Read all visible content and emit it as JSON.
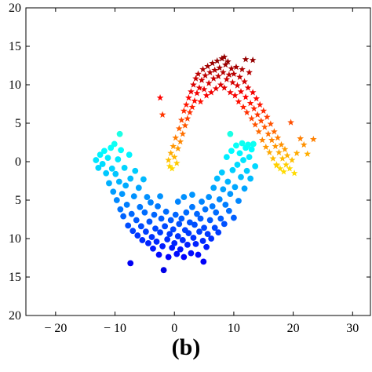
{
  "caption": "(b)",
  "chart_data": {
    "type": "scatter",
    "title": "",
    "xlabel": "",
    "ylabel": "",
    "xlim": [
      -25,
      33
    ],
    "ylim": [
      -20,
      20
    ],
    "x_ticks": [
      -20,
      -10,
      0,
      10,
      20,
      30
    ],
    "x_tick_labels": [
      "− 20",
      "− 10",
      "0",
      "10",
      "20",
      "30"
    ],
    "y_ticks": [
      20,
      15,
      10,
      5,
      0,
      -5,
      -10,
      -15,
      -20
    ],
    "y_tick_labels": [
      "20",
      "15",
      "10",
      "5",
      "0",
      "5",
      "10",
      "15",
      "20"
    ],
    "grid": false,
    "legend": "none",
    "colormap": "jet",
    "series": [
      {
        "marker": "circle",
        "description_of_shape": "lower U-shaped cluster",
        "points": [
          [
            -13.2,
            0.2
          ],
          [
            -12.8,
            -0.8
          ],
          [
            -12.5,
            0.9
          ],
          [
            -12.1,
            -0.3
          ],
          [
            -11.8,
            1.4
          ],
          [
            -11.5,
            -1.5
          ],
          [
            -11.2,
            0.5
          ],
          [
            -11.0,
            -2.8
          ],
          [
            -10.7,
            1.8
          ],
          [
            -10.5,
            -0.9
          ],
          [
            -10.3,
            -3.9
          ],
          [
            -10.1,
            2.3
          ],
          [
            -9.9,
            -1.6
          ],
          [
            -9.7,
            -5.0
          ],
          [
            -9.5,
            0.3
          ],
          [
            -9.3,
            -2.6
          ],
          [
            -9.1,
            -6.2
          ],
          [
            -9.0,
            1.5
          ],
          [
            -8.8,
            -4.2
          ],
          [
            -8.6,
            -7.1
          ],
          [
            -8.4,
            -0.8
          ],
          [
            -8.2,
            -3.1
          ],
          [
            -8.0,
            -5.6
          ],
          [
            -7.8,
            -8.3
          ],
          [
            -7.6,
            0.9
          ],
          [
            -7.4,
            -2.2
          ],
          [
            -7.2,
            -6.8
          ],
          [
            -7.0,
            -9.0
          ],
          [
            -6.8,
            -4.5
          ],
          [
            -6.6,
            -1.2
          ],
          [
            -6.4,
            -7.6
          ],
          [
            -6.2,
            -9.6
          ],
          [
            -6.0,
            -3.4
          ],
          [
            -5.8,
            -5.9
          ],
          [
            -5.6,
            -8.4
          ],
          [
            -5.4,
            -10.2
          ],
          [
            -5.2,
            -2.3
          ],
          [
            -5.0,
            -6.6
          ],
          [
            -4.8,
            -9.1
          ],
          [
            -4.6,
            -4.6
          ],
          [
            -4.4,
            -10.6
          ],
          [
            -4.2,
            -7.8
          ],
          [
            -4.0,
            -5.3
          ],
          [
            -3.8,
            -9.8
          ],
          [
            -3.6,
            -11.3
          ],
          [
            -3.4,
            -6.9
          ],
          [
            -3.2,
            -8.7
          ],
          [
            -3.0,
            -10.4
          ],
          [
            -2.8,
            -5.8
          ],
          [
            -2.6,
            -12.1
          ],
          [
            -2.4,
            -9.2
          ],
          [
            -2.2,
            -7.4
          ],
          [
            -2.0,
            -11.0
          ],
          [
            -1.8,
            -14.1
          ],
          [
            -1.6,
            -8.4
          ],
          [
            -1.4,
            -6.5
          ],
          [
            -1.2,
            -10.1
          ],
          [
            -1.0,
            -12.4
          ],
          [
            -0.8,
            -9.4
          ],
          [
            -0.6,
            -7.6
          ],
          [
            -0.4,
            -11.2
          ],
          [
            -0.2,
            -8.8
          ],
          [
            0.0,
            -10.6
          ],
          [
            0.2,
            -6.9
          ],
          [
            0.4,
            -12.0
          ],
          [
            0.6,
            -9.7
          ],
          [
            0.8,
            -8.1
          ],
          [
            1.0,
            -11.4
          ],
          [
            1.2,
            -7.4
          ],
          [
            1.4,
            -10.2
          ],
          [
            1.6,
            -12.4
          ],
          [
            1.8,
            -8.9
          ],
          [
            2.0,
            -6.6
          ],
          [
            2.2,
            -10.8
          ],
          [
            2.4,
            -9.3
          ],
          [
            2.6,
            -7.9
          ],
          [
            2.8,
            -11.9
          ],
          [
            3.0,
            -5.9
          ],
          [
            3.2,
            -9.9
          ],
          [
            3.4,
            -8.2
          ],
          [
            3.6,
            -10.7
          ],
          [
            3.8,
            -6.8
          ],
          [
            4.0,
            -12.1
          ],
          [
            4.2,
            -9.1
          ],
          [
            4.4,
            -7.4
          ],
          [
            4.6,
            -5.2
          ],
          [
            4.8,
            -10.3
          ],
          [
            5.0,
            -8.6
          ],
          [
            5.2,
            -6.2
          ],
          [
            5.4,
            -11.1
          ],
          [
            5.6,
            -9.4
          ],
          [
            5.8,
            -4.6
          ],
          [
            6.0,
            -7.6
          ],
          [
            6.2,
            -10.0
          ],
          [
            6.4,
            -5.8
          ],
          [
            6.6,
            -3.4
          ],
          [
            6.8,
            -8.6
          ],
          [
            7.0,
            -6.6
          ],
          [
            7.2,
            -2.2
          ],
          [
            7.4,
            -9.2
          ],
          [
            7.6,
            -4.9
          ],
          [
            7.8,
            -7.4
          ],
          [
            8.0,
            -1.4
          ],
          [
            8.2,
            -3.6
          ],
          [
            8.4,
            -8.1
          ],
          [
            8.6,
            -5.6
          ],
          [
            8.8,
            0.6
          ],
          [
            9.0,
            -2.6
          ],
          [
            9.2,
            -6.4
          ],
          [
            9.4,
            -4.2
          ],
          [
            9.6,
            1.4
          ],
          [
            9.8,
            -1.1
          ],
          [
            10.0,
            -7.3
          ],
          [
            10.2,
            -3.3
          ],
          [
            10.4,
            2.1
          ],
          [
            10.6,
            -0.4
          ],
          [
            10.8,
            -5.1
          ],
          [
            11.0,
            1.1
          ],
          [
            11.2,
            -2.0
          ],
          [
            11.4,
            2.4
          ],
          [
            11.6,
            0.2
          ],
          [
            11.8,
            -3.5
          ],
          [
            12.0,
            1.8
          ],
          [
            12.2,
            -1.2
          ],
          [
            12.4,
            2.2
          ],
          [
            12.6,
            0.6
          ],
          [
            12.8,
            -2.2
          ],
          [
            13.0,
            1.6
          ],
          [
            13.3,
            2.3
          ],
          [
            13.6,
            -0.6
          ],
          [
            9.4,
            3.6
          ],
          [
            -9.2,
            3.6
          ],
          [
            -7.4,
            -13.2
          ],
          [
            4.9,
            -13.0
          ],
          [
            -2.4,
            -4.5
          ],
          [
            0.6,
            -5.2
          ],
          [
            1.6,
            -4.6
          ],
          [
            3.0,
            -4.3
          ]
        ]
      },
      {
        "marker": "star",
        "description_of_shape": "upper inverted-U cluster",
        "points": [
          [
            -1.0,
            0.2
          ],
          [
            -0.8,
            -0.6
          ],
          [
            -0.6,
            1.1
          ],
          [
            -0.4,
            -0.9
          ],
          [
            -0.2,
            2.0
          ],
          [
            0.0,
            0.6
          ],
          [
            0.2,
            3.1
          ],
          [
            0.4,
            -0.2
          ],
          [
            0.6,
            1.7
          ],
          [
            0.8,
            4.3
          ],
          [
            1.0,
            2.6
          ],
          [
            1.2,
            5.4
          ],
          [
            1.4,
            3.6
          ],
          [
            1.6,
            6.6
          ],
          [
            1.8,
            4.7
          ],
          [
            2.0,
            7.4
          ],
          [
            2.2,
            5.6
          ],
          [
            2.4,
            8.3
          ],
          [
            2.6,
            6.4
          ],
          [
            2.8,
            9.1
          ],
          [
            3.0,
            7.1
          ],
          [
            3.2,
            10.0
          ],
          [
            3.4,
            7.9
          ],
          [
            3.6,
            10.8
          ],
          [
            3.8,
            8.9
          ],
          [
            4.0,
            11.4
          ],
          [
            4.2,
            9.6
          ],
          [
            4.4,
            7.8
          ],
          [
            4.6,
            10.6
          ],
          [
            4.8,
            12.0
          ],
          [
            5.0,
            9.4
          ],
          [
            5.2,
            11.2
          ],
          [
            5.4,
            8.6
          ],
          [
            5.6,
            12.4
          ],
          [
            5.8,
            10.2
          ],
          [
            6.0,
            11.6
          ],
          [
            6.2,
            9.0
          ],
          [
            6.4,
            12.8
          ],
          [
            6.6,
            10.8
          ],
          [
            6.8,
            11.9
          ],
          [
            7.0,
            9.5
          ],
          [
            7.2,
            13.1
          ],
          [
            7.4,
            11.1
          ],
          [
            7.6,
            12.2
          ],
          [
            7.8,
            10.0
          ],
          [
            8.0,
            13.4
          ],
          [
            8.2,
            11.6
          ],
          [
            8.4,
            9.6
          ],
          [
            8.6,
            12.6
          ],
          [
            8.8,
            10.7
          ],
          [
            9.0,
            13.0
          ],
          [
            9.2,
            11.3
          ],
          [
            9.4,
            9.0
          ],
          [
            9.6,
            12.1
          ],
          [
            9.8,
            10.3
          ],
          [
            10.0,
            11.4
          ],
          [
            10.2,
            8.6
          ],
          [
            10.4,
            12.3
          ],
          [
            10.6,
            9.9
          ],
          [
            10.8,
            7.8
          ],
          [
            11.0,
            11.0
          ],
          [
            11.2,
            9.1
          ],
          [
            11.4,
            12.0
          ],
          [
            11.6,
            7.1
          ],
          [
            11.8,
            10.4
          ],
          [
            12.0,
            8.4
          ],
          [
            12.2,
            6.4
          ],
          [
            12.4,
            9.6
          ],
          [
            12.6,
            11.6
          ],
          [
            12.8,
            7.6
          ],
          [
            13.0,
            5.6
          ],
          [
            13.2,
            9.0
          ],
          [
            13.4,
            6.9
          ],
          [
            13.6,
            4.8
          ],
          [
            13.8,
            8.2
          ],
          [
            14.0,
            6.1
          ],
          [
            14.2,
            3.9
          ],
          [
            14.4,
            7.4
          ],
          [
            14.6,
            5.3
          ],
          [
            14.8,
            2.8
          ],
          [
            15.0,
            6.6
          ],
          [
            15.2,
            4.5
          ],
          [
            15.4,
            1.9
          ],
          [
            15.6,
            5.8
          ],
          [
            15.8,
            3.6
          ],
          [
            16.0,
            1.2
          ],
          [
            16.2,
            4.9
          ],
          [
            16.4,
            2.8
          ],
          [
            16.6,
            0.4
          ],
          [
            16.8,
            3.9
          ],
          [
            17.0,
            2.0
          ],
          [
            17.2,
            -0.4
          ],
          [
            17.4,
            3.1
          ],
          [
            17.6,
            1.2
          ],
          [
            17.8,
            -0.9
          ],
          [
            18.0,
            2.2
          ],
          [
            18.2,
            0.4
          ],
          [
            18.4,
            -1.3
          ],
          [
            18.6,
            1.6
          ],
          [
            18.8,
            -0.4
          ],
          [
            19.0,
            0.8
          ],
          [
            19.4,
            -0.9
          ],
          [
            19.8,
            0.2
          ],
          [
            20.2,
            -1.5
          ],
          [
            20.6,
            1.1
          ],
          [
            21.2,
            3.0
          ],
          [
            21.8,
            2.2
          ],
          [
            22.4,
            1.0
          ],
          [
            23.4,
            2.9
          ],
          [
            13.2,
            13.2
          ],
          [
            -2.4,
            8.3
          ],
          [
            -2.0,
            6.1
          ],
          [
            8.4,
            13.6
          ],
          [
            12.0,
            13.3
          ],
          [
            17.2,
            -0.5
          ],
          [
            19.6,
            5.1
          ]
        ]
      }
    ]
  }
}
